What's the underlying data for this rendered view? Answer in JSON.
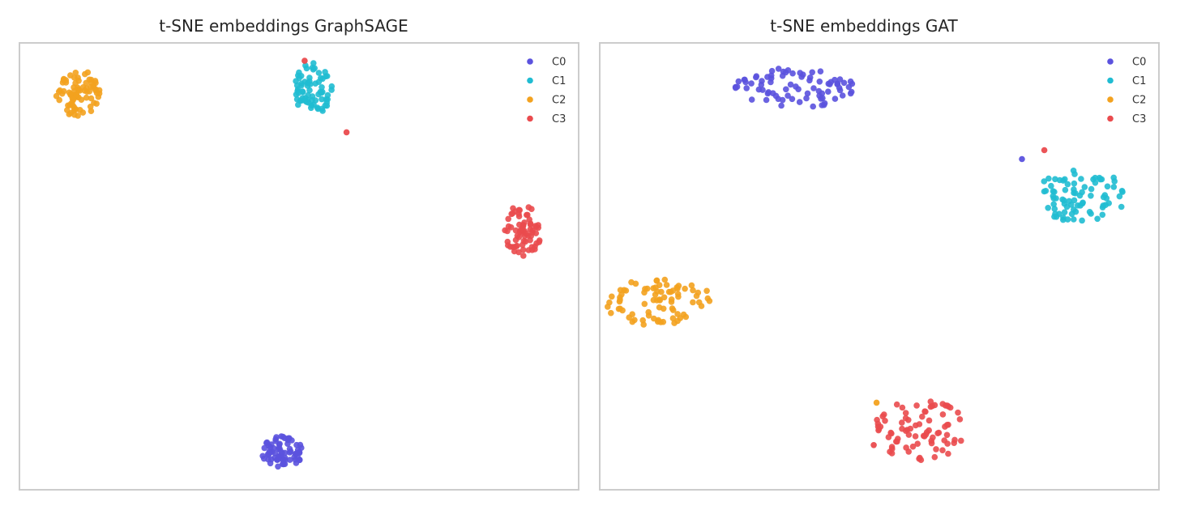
{
  "colors": {
    "C0": "#5b52de",
    "C1": "#20bcd2",
    "C2": "#f3a21f",
    "C3": "#ea4b4e",
    "frame": "#cccccc"
  },
  "chart_data": [
    {
      "type": "scatter",
      "title": "t-SNE embeddings GraphSAGE",
      "xlabel": "",
      "ylabel": "",
      "grid": false,
      "legend_position": "top-right",
      "legend": [
        "C0",
        "C1",
        "C2",
        "C3"
      ],
      "clusters": [
        {
          "name": "C0",
          "center": [
            47,
            8.5
          ],
          "spread": [
            7.5,
            7
          ],
          "count": 70
        },
        {
          "name": "C1",
          "center": [
            52.5,
            89.5
          ],
          "spread": [
            6.5,
            12
          ],
          "count": 70
        },
        {
          "name": "C2",
          "center": [
            10.5,
            88.5
          ],
          "spread": [
            8,
            11
          ],
          "count": 80
        },
        {
          "name": "C3",
          "center": [
            90,
            58
          ],
          "spread": [
            6.5,
            12
          ],
          "count": 70
        }
      ],
      "outliers": [
        {
          "series": "C3",
          "x": 51,
          "y": 96
        },
        {
          "series": "C3",
          "x": 58.5,
          "y": 80
        }
      ]
    },
    {
      "type": "scatter",
      "title": "t-SNE embeddings GAT",
      "xlabel": "",
      "ylabel": "",
      "grid": false,
      "legend_position": "top-right",
      "legend": [
        "C0",
        "C1",
        "C2",
        "C3"
      ],
      "clusters": [
        {
          "name": "C0",
          "center": [
            35,
            90
          ],
          "spread": [
            21,
            9
          ],
          "count": 80
        },
        {
          "name": "C1",
          "center": [
            86,
            66
          ],
          "spread": [
            18,
            12
          ],
          "count": 80
        },
        {
          "name": "C2",
          "center": [
            10.5,
            42
          ],
          "spread": [
            20,
            10.5
          ],
          "count": 80
        },
        {
          "name": "C3",
          "center": [
            57.5,
            13.5
          ],
          "spread": [
            17,
            14
          ],
          "count": 80
        }
      ],
      "outliers": [
        {
          "series": "C0",
          "x": 75.5,
          "y": 74
        },
        {
          "series": "C3",
          "x": 79.5,
          "y": 76
        },
        {
          "series": "C2",
          "x": 49.5,
          "y": 19.5
        },
        {
          "series": "C3",
          "x": 49,
          "y": 10
        }
      ]
    }
  ]
}
